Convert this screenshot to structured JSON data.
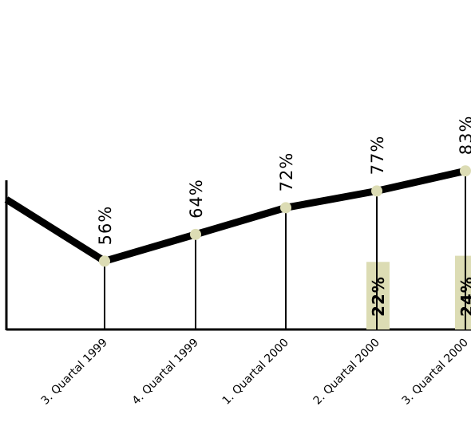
{
  "chart_data": {
    "type": "line",
    "categories": [
      "3. Quartal 1999",
      "4. Quartal 1999",
      "1. Quartal 2000",
      "2. Quartal 2000",
      "3. Quartal 2000"
    ],
    "series": [
      {
        "values": [
          56,
          64,
          72,
          77,
          83
        ],
        "labels": [
          "56%",
          "64%",
          "72%",
          "77%",
          "83%"
        ]
      },
      {
        "values": [
          null,
          null,
          null,
          22,
          24
        ],
        "labels": [
          "",
          "",
          "",
          "22%",
          "24%"
        ]
      }
    ],
    "grid": false,
    "colors": {
      "line": "#000000",
      "marker": "#dcdcb4",
      "bar": "#dcdcb4",
      "axis": "#000000"
    }
  }
}
